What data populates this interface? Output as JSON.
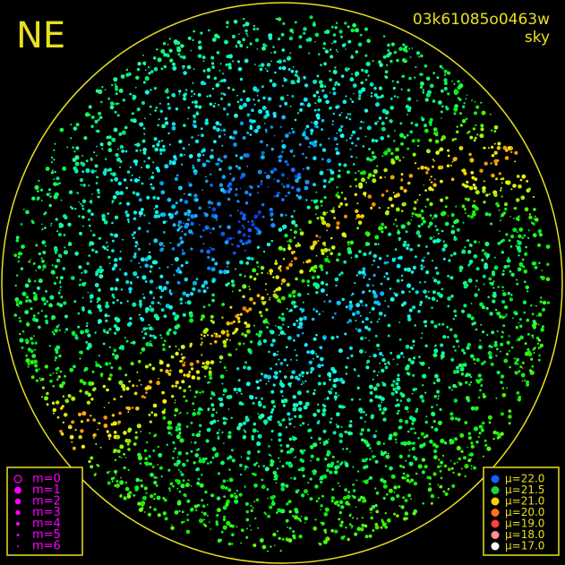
{
  "header": {
    "direction": "NE",
    "image_id": "03k61085o0463w",
    "mode": "sky"
  },
  "magnitude_legend": {
    "color": "#ff00ff",
    "items": [
      "m=0",
      "m=1",
      "m=2",
      "m=3",
      "m=4",
      "m=5",
      "m=6"
    ]
  },
  "brightness_legend": {
    "items": [
      {
        "label": "μ=22.0",
        "color": "#1060ff"
      },
      {
        "label": "μ=21.5",
        "color": "#20d040"
      },
      {
        "label": "μ=21.0",
        "color": "#ffd000"
      },
      {
        "label": "μ=20.0",
        "color": "#ff7020"
      },
      {
        "label": "μ=19.0",
        "color": "#ff4040"
      },
      {
        "label": "μ=18.0",
        "color": "#ff9090"
      },
      {
        "label": "μ=17.0",
        "color": "#ffffff"
      }
    ]
  },
  "frame_color": "#e8e020"
}
